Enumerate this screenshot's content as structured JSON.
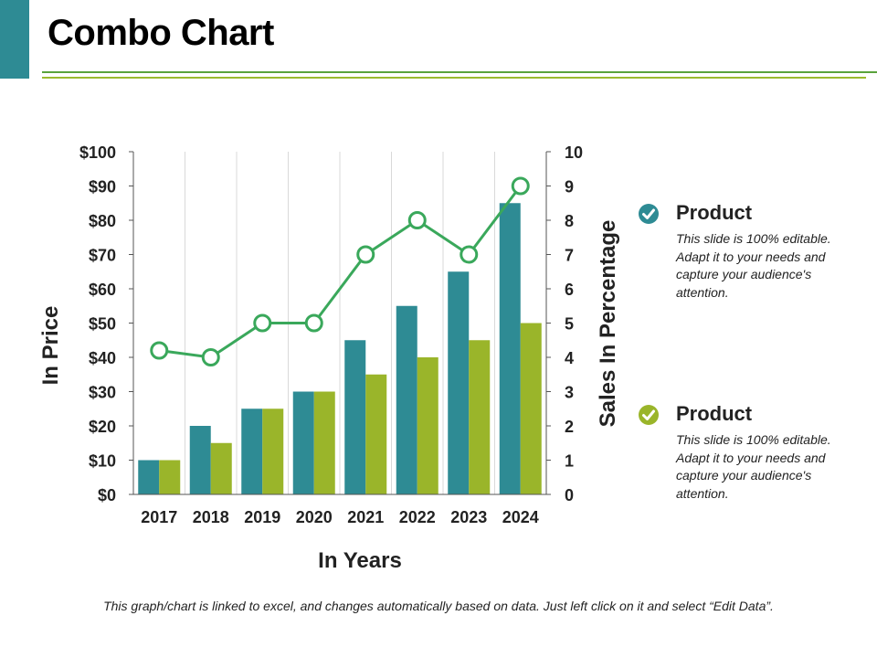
{
  "slide": {
    "title": "Combo Chart",
    "footer": "This graph/chart is linked to excel, and changes automatically based on data. Just left click on it and select “Edit Data”."
  },
  "legend": [
    {
      "title": "Product",
      "description": "This slide is 100% editable. Adapt it to your needs and capture your audience's attention.",
      "color": "#2e8b94",
      "icon": "check-circle-icon"
    },
    {
      "title": "Product",
      "description": "This slide is 100% editable. Adapt it to your needs and capture your audience's attention.",
      "color": "#9ab52a",
      "icon": "check-circle-icon"
    }
  ],
  "colors": {
    "accent": "#2e8b94",
    "bar_teal": "#2e8b94",
    "bar_green": "#9ab52a",
    "line": "#3aa85b"
  },
  "chart_data": {
    "type": "combo",
    "categories": [
      "2017",
      "2018",
      "2019",
      "2020",
      "2021",
      "2022",
      "2023",
      "2024"
    ],
    "series": [
      {
        "type": "bar",
        "axis": "left",
        "color": "#2e8b94",
        "values": [
          10,
          20,
          25,
          30,
          45,
          55,
          65,
          85
        ]
      },
      {
        "type": "bar",
        "axis": "left",
        "color": "#9ab52a",
        "values": [
          10,
          15,
          25,
          30,
          35,
          40,
          45,
          50
        ]
      },
      {
        "type": "line",
        "axis": "right",
        "color": "#3aa85b",
        "values": [
          4.2,
          4,
          5,
          5,
          7,
          8,
          7,
          9
        ]
      }
    ],
    "xlabel": "In Years",
    "ylabel": "In Price",
    "y2label": "Sales In Percentage",
    "ylim": [
      0,
      100
    ],
    "y2lim": [
      0,
      10
    ],
    "yticks": [
      "$0",
      "$10",
      "$20",
      "$30",
      "$40",
      "$50",
      "$60",
      "$70",
      "$80",
      "$90",
      "$100"
    ],
    "y2ticks": [
      "0",
      "1",
      "2",
      "3",
      "4",
      "5",
      "6",
      "7",
      "8",
      "9",
      "10"
    ],
    "grid": "vertical"
  }
}
